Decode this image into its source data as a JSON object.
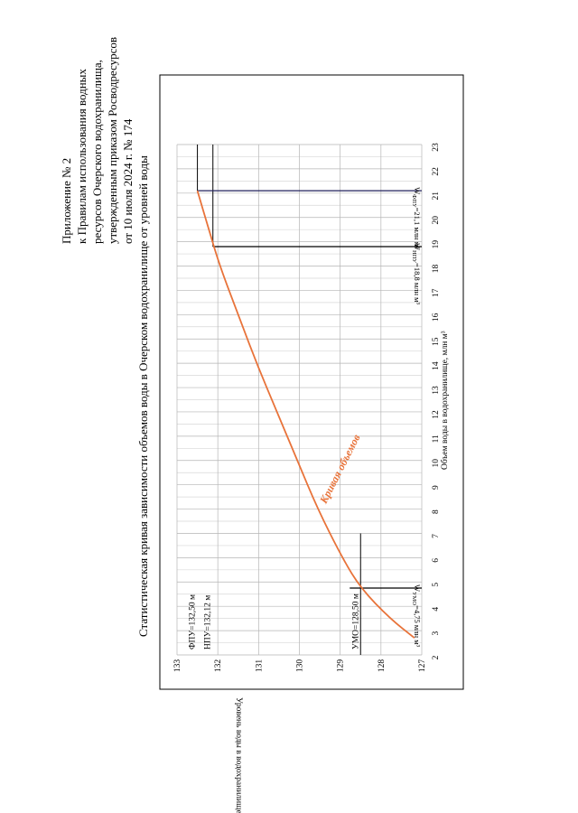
{
  "appendix": {
    "lines": [
      "Приложение № 2",
      "к   Правилам   использования   водных",
      "ресурсов   Очерского   водохранилища,",
      "утвержденным приказом Росводресурсов",
      "от 10 июля 2024 г. № 174"
    ]
  },
  "chart_data": {
    "type": "line",
    "title": "Статистическая кривая зависимости объемов воды в Очерском водохранилище от уровней воды",
    "xlabel": "Объем воды в водохранилище, млн м³",
    "ylabel": "Уровень воды в водохранилище, м",
    "xlim": [
      2,
      23
    ],
    "ylim": [
      127,
      133
    ],
    "x_ticks": [
      "2",
      "3",
      "4",
      "5",
      "6",
      "7",
      "8",
      "9",
      "10",
      "11",
      "12",
      "13",
      "14",
      "15",
      "16",
      "17",
      "18",
      "19",
      "20",
      "21",
      "22",
      "23"
    ],
    "y_ticks": [
      "127",
      "128",
      "129",
      "130",
      "131",
      "132",
      "133"
    ],
    "grid": true,
    "series": [
      {
        "name": "Кривая объемов",
        "color": "#e8733a",
        "x": [
          2.7,
          3.5,
          4.75,
          6.0,
          8.0,
          10.0,
          12.0,
          14.0,
          16.0,
          18.0,
          19.5,
          21.1
        ],
        "y": [
          127.18,
          127.78,
          128.5,
          128.95,
          129.55,
          130.05,
          130.55,
          131.05,
          131.5,
          131.95,
          132.22,
          132.5
        ]
      }
    ],
    "reference_lines": {
      "levels": [
        {
          "label": "ФПУ=132,50 м",
          "value": 132.5
        },
        {
          "label": "НПУ=132,12 м",
          "value": 132.12
        },
        {
          "label": "УМО=128,50 м",
          "value": 128.5
        }
      ],
      "volumes": [
        {
          "value": 21.1,
          "label_main": "W",
          "label_sub": "ФПУ",
          "label_rest": "=21,1 млн м³"
        },
        {
          "value": 18.8,
          "label_main": "W",
          "label_sub": "НПУ",
          "label_rest": "=18,8 млн м³"
        },
        {
          "value": 4.75,
          "label_main": "W",
          "label_sub": "УМО",
          "label_rest": "=4,75 млн м³"
        }
      ]
    },
    "curve_label": "Кривая объемов"
  }
}
